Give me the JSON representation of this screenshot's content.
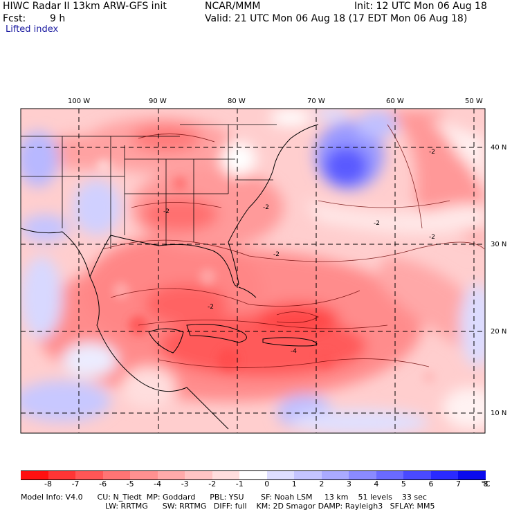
{
  "header": {
    "title": "HIWC Radar II 13km ARW-GFS init",
    "center": "NCAR/MMM",
    "init": "Init: 12 UTC Mon 06 Aug 18",
    "fcst_label": "Fcst:",
    "fcst_value": "9 h",
    "valid": "Valid: 21 UTC Mon 06 Aug 18 (17 EDT Mon 06 Aug 18)",
    "field": "Lifted index"
  },
  "longitude_labels": [
    "100 W",
    "90 W",
    "80 W",
    "70 W",
    "60 W",
    "50 W"
  ],
  "latitude_labels": [
    "40 N",
    "30 N",
    "20 N",
    "10 N"
  ],
  "contour_labels": [
    "-2",
    "-2",
    "-2",
    "-2",
    "-2",
    "-2",
    "-4",
    "-2"
  ],
  "colorbar": {
    "colors": [
      "#ff1010",
      "#ff3535",
      "#ff5656",
      "#ff7474",
      "#ff9090",
      "#ffaaaa",
      "#ffc4c4",
      "#ffdede",
      "#ffffff",
      "#dedeff",
      "#c4c4ff",
      "#aaaaff",
      "#8a8aff",
      "#6a6aff",
      "#4a4aff",
      "#2a2aff",
      "#0a0aee"
    ],
    "ticks": [
      "-8",
      "-7",
      "-6",
      "-5",
      "-4",
      "-3",
      "-2",
      "-1",
      "0",
      "1",
      "2",
      "3",
      "4",
      "5",
      "6",
      "7",
      "8"
    ],
    "unit": "°C"
  },
  "model_info": {
    "line1": "Model Info: V4.0      CU: N_Tiedt  MP: Goddard      PBL: YSU       SF: Noah LSM     13 km    51 levels    33 sec",
    "line2": "LW: RRTMG      SW: RRTMG   DIFF: full    KM: 2D Smagor DAMP: Rayleigh3   SFLAY: MM5"
  }
}
